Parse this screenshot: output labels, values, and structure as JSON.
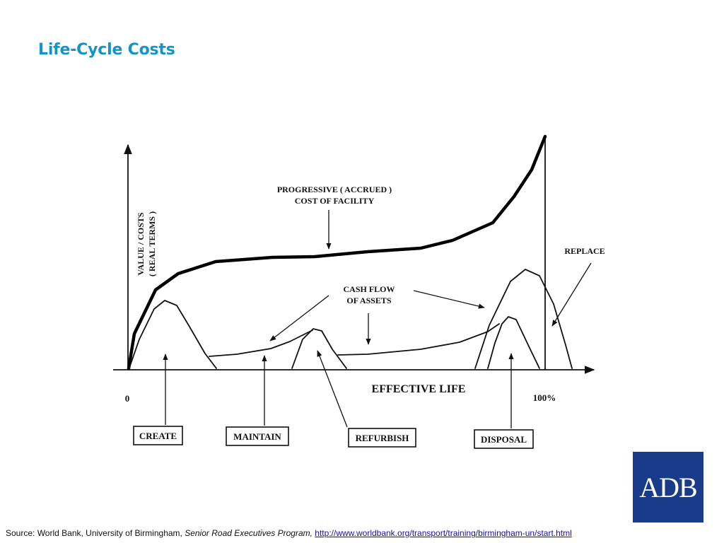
{
  "slide": {
    "title": "Life-Cycle Costs"
  },
  "diagram": {
    "y_axis_label_line1": "VALUE / COSTS",
    "y_axis_label_line2": "( REAL TERMS )",
    "x_axis_label": "EFFECTIVE LIFE",
    "x_start_label": "0",
    "x_end_label": "100%",
    "progressive_label_line1": "PROGRESSIVE ( ACCRUED )",
    "progressive_label_line2": "COST OF FACILITY",
    "cashflow_label_line1": "CASH FLOW",
    "cashflow_label_line2": "OF ASSETS",
    "replace_label": "REPLACE",
    "boxes": {
      "create": "CREATE",
      "maintain": "MAINTAIN",
      "refurbish": "REFURBISH",
      "disposal": "DISPOSAL"
    }
  },
  "logo": {
    "text": "ADB"
  },
  "source": {
    "prefix": "Source: World Bank, University of Birmingham, ",
    "program": "Senior Road Executives Program,",
    "url": "http://www.worldbank.org/transport/training/birmingham-un/start.html"
  },
  "colors": {
    "title": "#1493c8",
    "logo_bg": "#1a3a8a",
    "link": "#1a0dab"
  }
}
